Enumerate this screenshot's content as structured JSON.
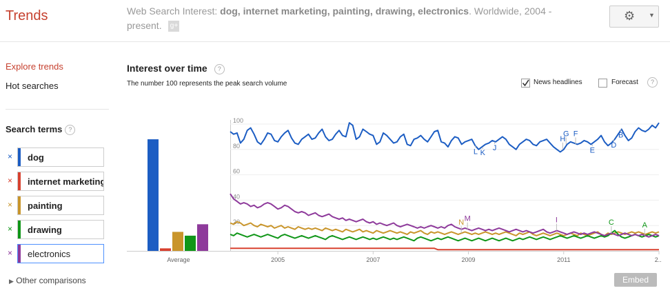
{
  "app": {
    "title": "Trends"
  },
  "header": {
    "query_prefix": "Web Search Interest:",
    "query_terms": "dog, internet marketing, painting, drawing, electronics",
    "query_suffix": ". Worldwide, 2004 - present.",
    "share_icon": "google-plus-icon",
    "settings_icon": "gear-icon"
  },
  "sidebar": {
    "explore": "Explore trends",
    "hot": "Hot searches",
    "search_terms_label": "Search terms",
    "help": "?",
    "terms": [
      {
        "label": "dog",
        "color": "#1c5dc3"
      },
      {
        "label": "internet marketing",
        "color": "#d8412f"
      },
      {
        "label": "painting",
        "color": "#c9952b"
      },
      {
        "label": "drawing",
        "color": "#109618"
      },
      {
        "label": "electronics",
        "color": "#8e3a9b"
      }
    ],
    "remove_glyph": "×",
    "other": "Other comparisons"
  },
  "main": {
    "title": "Interest over time",
    "subtitle": "The number 100 represents the peak search volume",
    "news_label": "News headlines",
    "news_checked": true,
    "forecast_label": "Forecast",
    "forecast_checked": false,
    "embed": "Embed"
  },
  "chart_data": [
    {
      "type": "bar",
      "categories": [
        "dog",
        "internet marketing",
        "painting",
        "drawing",
        "electronics"
      ],
      "values": [
        88,
        2,
        15,
        12,
        21
      ],
      "xlabel": "Average",
      "colors": [
        "#1c5dc3",
        "#d8412f",
        "#c9952b",
        "#109618",
        "#8e3a9b"
      ]
    },
    {
      "type": "line",
      "x_start": 2004.0,
      "x_end": 2013.0,
      "ylim": [
        0,
        100
      ],
      "y_ticks": [
        20,
        40,
        60,
        80,
        100
      ],
      "x_ticks": [
        "2005",
        "2007",
        "2009",
        "2011",
        "2..."
      ],
      "series": [
        {
          "color": "#1c5dc3",
          "values": [
            94,
            92,
            93,
            85,
            88,
            95,
            97,
            92,
            86,
            84,
            88,
            93,
            92,
            87,
            86,
            90,
            93,
            95,
            89,
            85,
            84,
            88,
            90,
            92,
            88,
            89,
            93,
            96,
            90,
            87,
            88,
            92,
            95,
            91,
            90,
            101,
            99,
            88,
            90,
            96,
            94,
            92,
            91,
            84,
            86,
            93,
            91,
            88,
            85,
            86,
            90,
            92,
            84,
            83,
            88,
            89,
            91,
            88,
            86,
            90,
            94,
            95,
            86,
            85,
            82,
            87,
            90,
            89,
            84,
            86,
            87,
            88,
            83,
            80,
            82,
            84,
            85,
            87,
            86,
            88,
            90,
            88,
            84,
            82,
            80,
            84,
            86,
            88,
            87,
            84,
            83,
            86,
            87,
            88,
            85,
            82,
            80,
            78,
            80,
            84,
            86,
            85,
            84,
            85,
            87,
            86,
            84,
            86,
            88,
            91,
            86,
            83,
            85,
            88,
            92,
            96,
            91,
            87,
            89,
            94,
            97,
            95,
            94,
            96,
            99,
            97,
            101
          ]
        },
        {
          "color": "#d8412f",
          "values": [
            2,
            2,
            2,
            2,
            2,
            2,
            2,
            2,
            2,
            2,
            2,
            2,
            2,
            2,
            2,
            2,
            2,
            2,
            2,
            2,
            2,
            2,
            2,
            2,
            2,
            2,
            2,
            2,
            2,
            2,
            2,
            2,
            2,
            2,
            2,
            2,
            2,
            2,
            2,
            2,
            2,
            2,
            2,
            2,
            2,
            2,
            2,
            2,
            2,
            2,
            2,
            2,
            2,
            2,
            2,
            2,
            2,
            2,
            2,
            2,
            2,
            1,
            1,
            1,
            1,
            1,
            1,
            1,
            1,
            1,
            1,
            1,
            1,
            1,
            1,
            1,
            1,
            1,
            1,
            1,
            1,
            1,
            1,
            1,
            1,
            1,
            1,
            1,
            1,
            1,
            1,
            1,
            1,
            1,
            1,
            1,
            1,
            1,
            1,
            1,
            1,
            1,
            1,
            1,
            1,
            1,
            1,
            1,
            1,
            1,
            1,
            1,
            1,
            1,
            1,
            1,
            1,
            1,
            1,
            1,
            1,
            1,
            1,
            1,
            1,
            1,
            1
          ]
        },
        {
          "color": "#c9952b",
          "values": [
            22,
            21,
            23,
            22,
            20,
            21,
            22,
            20,
            19,
            21,
            20,
            19,
            20,
            18,
            19,
            20,
            18,
            19,
            18,
            17,
            19,
            18,
            17,
            18,
            17,
            18,
            17,
            16,
            18,
            17,
            16,
            17,
            16,
            15,
            17,
            16,
            15,
            16,
            17,
            15,
            16,
            15,
            14,
            16,
            15,
            14,
            15,
            16,
            15,
            14,
            15,
            14,
            13,
            15,
            14,
            15,
            16,
            14,
            13,
            15,
            14,
            15,
            14,
            13,
            14,
            15,
            14,
            13,
            14,
            15,
            14,
            13,
            14,
            13,
            14,
            15,
            14,
            13,
            14,
            13,
            14,
            15,
            14,
            13,
            12,
            14,
            13,
            14,
            15,
            13,
            12,
            13,
            14,
            13,
            12,
            13,
            14,
            13,
            12,
            13,
            14,
            13,
            12,
            14,
            13,
            12,
            13,
            14,
            15,
            13,
            12,
            14,
            13,
            14,
            15,
            14,
            13,
            14,
            15,
            14,
            15,
            14,
            13,
            14,
            15,
            14,
            15
          ]
        },
        {
          "color": "#109618",
          "values": [
            13,
            12,
            14,
            13,
            12,
            11,
            12,
            13,
            12,
            11,
            12,
            13,
            12,
            11,
            10,
            12,
            13,
            12,
            11,
            10,
            11,
            12,
            11,
            10,
            11,
            12,
            11,
            10,
            9,
            11,
            12,
            11,
            10,
            9,
            10,
            11,
            10,
            9,
            10,
            11,
            10,
            9,
            10,
            9,
            10,
            11,
            10,
            9,
            10,
            9,
            10,
            11,
            10,
            9,
            8,
            10,
            11,
            10,
            9,
            8,
            9,
            10,
            9,
            10,
            11,
            10,
            9,
            8,
            9,
            10,
            9,
            8,
            9,
            10,
            9,
            8,
            9,
            10,
            9,
            8,
            9,
            10,
            9,
            8,
            9,
            10,
            9,
            10,
            11,
            10,
            9,
            10,
            11,
            10,
            9,
            10,
            11,
            12,
            11,
            10,
            11,
            12,
            11,
            10,
            11,
            12,
            11,
            10,
            11,
            12,
            11,
            12,
            14,
            16,
            13,
            11,
            10,
            11,
            12,
            13,
            12,
            11,
            12,
            13,
            12,
            11,
            12
          ]
        },
        {
          "color": "#8e3a9b",
          "values": [
            45,
            41,
            39,
            37,
            38,
            37,
            35,
            36,
            34,
            35,
            37,
            38,
            37,
            35,
            33,
            34,
            36,
            35,
            33,
            31,
            30,
            31,
            30,
            28,
            29,
            30,
            28,
            27,
            28,
            29,
            27,
            26,
            25,
            26,
            24,
            25,
            24,
            23,
            24,
            25,
            23,
            22,
            23,
            21,
            22,
            21,
            20,
            21,
            22,
            20,
            19,
            20,
            21,
            20,
            19,
            18,
            19,
            18,
            19,
            20,
            19,
            18,
            19,
            18,
            20,
            21,
            19,
            18,
            17,
            18,
            17,
            16,
            17,
            18,
            17,
            16,
            17,
            16,
            17,
            18,
            17,
            16,
            15,
            16,
            17,
            16,
            15,
            16,
            15,
            14,
            15,
            16,
            17,
            15,
            14,
            15,
            16,
            15,
            14,
            13,
            14,
            15,
            14,
            13,
            14,
            13,
            14,
            15,
            14,
            13,
            12,
            13,
            14,
            13,
            12,
            13,
            14,
            13,
            12,
            13,
            12,
            13,
            12,
            11,
            12,
            13,
            12
          ]
        }
      ],
      "annotations": [
        {
          "label": "L",
          "x": 2009.15,
          "color": "#1c5dc3"
        },
        {
          "label": "K",
          "x": 2009.3,
          "color": "#1c5dc3"
        },
        {
          "label": "J",
          "x": 2009.55,
          "color": "#1c5dc3"
        },
        {
          "label": "H",
          "x": 2010.98,
          "color": "#1c5dc3"
        },
        {
          "label": "G",
          "x": 2011.05,
          "color": "#1c5dc3"
        },
        {
          "label": "F",
          "x": 2011.25,
          "color": "#1c5dc3"
        },
        {
          "label": "E",
          "x": 2011.6,
          "color": "#1c5dc3"
        },
        {
          "label": "D",
          "x": 2012.05,
          "color": "#1c5dc3"
        },
        {
          "label": "B",
          "x": 2012.2,
          "color": "#1c5dc3"
        },
        {
          "label": "N",
          "x": 2008.85,
          "color": "#c9952b"
        },
        {
          "label": "M",
          "x": 2008.98,
          "color": "#8e3a9b"
        },
        {
          "label": "I",
          "x": 2010.85,
          "color": "#8e3a9b"
        },
        {
          "label": "C",
          "x": 2012.0,
          "color": "#109618"
        },
        {
          "label": "A",
          "x": 2012.7,
          "color": "#109618"
        }
      ]
    }
  ]
}
